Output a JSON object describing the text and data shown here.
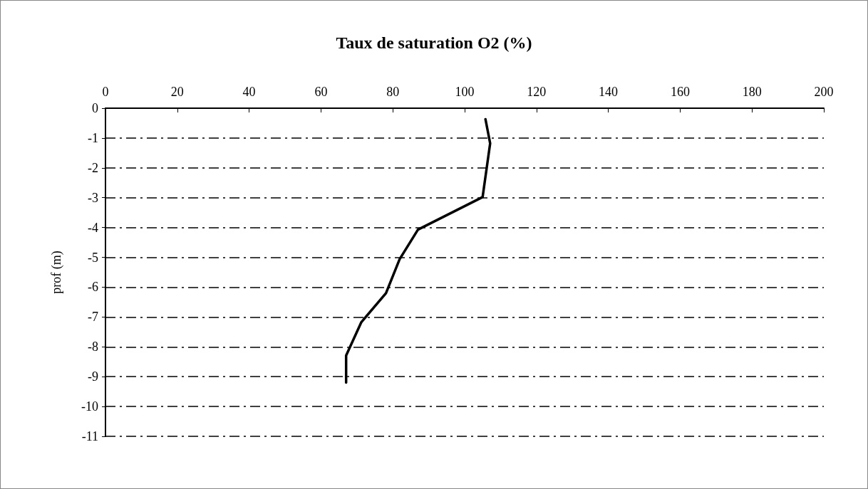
{
  "chart_data": {
    "type": "line",
    "title": "Taux de saturation O2 (%)",
    "ylabel": "prof (m)",
    "x": [
      105.8,
      107.1,
      105.0,
      87.0,
      81.9,
      78.1,
      71.2,
      67.0,
      67.0
    ],
    "values": [
      -0.37,
      -1.18,
      -2.98,
      -4.07,
      -5.06,
      -6.2,
      -7.18,
      -8.29,
      -9.2
    ],
    "color": "#000000",
    "marker": "none",
    "line_style": "solid",
    "xlim": [
      0,
      200
    ],
    "xticks": [
      0,
      20,
      40,
      60,
      80,
      100,
      120,
      140,
      160,
      180,
      200
    ],
    "ylim": [
      -11,
      0
    ],
    "yticks": [
      0,
      -1,
      -2,
      -3,
      -4,
      -5,
      -6,
      -7,
      -8,
      -9,
      -10,
      -11
    ],
    "grid": "y"
  }
}
